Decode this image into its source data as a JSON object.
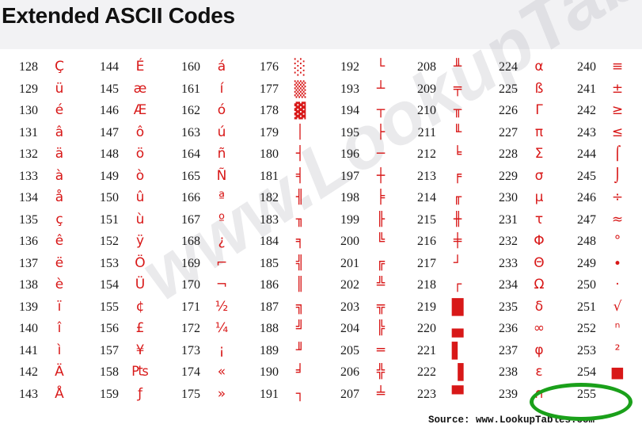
{
  "title": "Extended ASCII Codes",
  "watermark": "www.LookupTables.com",
  "source": "Source:  www.LookupTables.com",
  "highlight_code": "255",
  "colors": {
    "glyph": "#d81818",
    "highlight": "#1aa01a",
    "header_bg": "#f2f2f4"
  },
  "columns": [
    {
      "rows": [
        {
          "code": "128",
          "glyph": "Ç"
        },
        {
          "code": "129",
          "glyph": "ü"
        },
        {
          "code": "130",
          "glyph": "é"
        },
        {
          "code": "131",
          "glyph": "â"
        },
        {
          "code": "132",
          "glyph": "ä"
        },
        {
          "code": "133",
          "glyph": "à"
        },
        {
          "code": "134",
          "glyph": "å"
        },
        {
          "code": "135",
          "glyph": "ç"
        },
        {
          "code": "136",
          "glyph": "ê"
        },
        {
          "code": "137",
          "glyph": "ë"
        },
        {
          "code": "138",
          "glyph": "è"
        },
        {
          "code": "139",
          "glyph": "ï"
        },
        {
          "code": "140",
          "glyph": "î"
        },
        {
          "code": "141",
          "glyph": "ì"
        },
        {
          "code": "142",
          "glyph": "Ä"
        },
        {
          "code": "143",
          "glyph": "Å"
        }
      ]
    },
    {
      "rows": [
        {
          "code": "144",
          "glyph": "É"
        },
        {
          "code": "145",
          "glyph": "æ"
        },
        {
          "code": "146",
          "glyph": "Æ"
        },
        {
          "code": "147",
          "glyph": "ô"
        },
        {
          "code": "148",
          "glyph": "ö"
        },
        {
          "code": "149",
          "glyph": "ò"
        },
        {
          "code": "150",
          "glyph": "û"
        },
        {
          "code": "151",
          "glyph": "ù"
        },
        {
          "code": "152",
          "glyph": "ÿ"
        },
        {
          "code": "153",
          "glyph": "Ö"
        },
        {
          "code": "154",
          "glyph": "Ü"
        },
        {
          "code": "155",
          "glyph": "¢"
        },
        {
          "code": "156",
          "glyph": "£"
        },
        {
          "code": "157",
          "glyph": "¥"
        },
        {
          "code": "158",
          "glyph": "₧"
        },
        {
          "code": "159",
          "glyph": "ƒ"
        }
      ]
    },
    {
      "rows": [
        {
          "code": "160",
          "glyph": "á"
        },
        {
          "code": "161",
          "glyph": "í"
        },
        {
          "code": "162",
          "glyph": "ó"
        },
        {
          "code": "163",
          "glyph": "ú"
        },
        {
          "code": "164",
          "glyph": "ñ"
        },
        {
          "code": "165",
          "glyph": "Ñ"
        },
        {
          "code": "166",
          "glyph": "ª"
        },
        {
          "code": "167",
          "glyph": "º"
        },
        {
          "code": "168",
          "glyph": "¿"
        },
        {
          "code": "169",
          "glyph": "⌐"
        },
        {
          "code": "170",
          "glyph": "¬"
        },
        {
          "code": "171",
          "glyph": "½"
        },
        {
          "code": "172",
          "glyph": "¼"
        },
        {
          "code": "173",
          "glyph": "¡"
        },
        {
          "code": "174",
          "glyph": "«"
        },
        {
          "code": "175",
          "glyph": "»"
        }
      ]
    },
    {
      "rows": [
        {
          "code": "176",
          "glyph": "░"
        },
        {
          "code": "177",
          "glyph": "▒"
        },
        {
          "code": "178",
          "glyph": "▓"
        },
        {
          "code": "179",
          "glyph": "│"
        },
        {
          "code": "180",
          "glyph": "┤"
        },
        {
          "code": "181",
          "glyph": "╡"
        },
        {
          "code": "182",
          "glyph": "╢"
        },
        {
          "code": "183",
          "glyph": "╖"
        },
        {
          "code": "184",
          "glyph": "╕"
        },
        {
          "code": "185",
          "glyph": "╣"
        },
        {
          "code": "186",
          "glyph": "║"
        },
        {
          "code": "187",
          "glyph": "╗"
        },
        {
          "code": "188",
          "glyph": "╝"
        },
        {
          "code": "189",
          "glyph": "╜"
        },
        {
          "code": "190",
          "glyph": "╛"
        },
        {
          "code": "191",
          "glyph": "┐"
        }
      ]
    },
    {
      "rows": [
        {
          "code": "192",
          "glyph": "└"
        },
        {
          "code": "193",
          "glyph": "┴"
        },
        {
          "code": "194",
          "glyph": "┬"
        },
        {
          "code": "195",
          "glyph": "├"
        },
        {
          "code": "196",
          "glyph": "─"
        },
        {
          "code": "197",
          "glyph": "┼"
        },
        {
          "code": "198",
          "glyph": "╞"
        },
        {
          "code": "199",
          "glyph": "╟"
        },
        {
          "code": "200",
          "glyph": "╚"
        },
        {
          "code": "201",
          "glyph": "╔"
        },
        {
          "code": "202",
          "glyph": "╩"
        },
        {
          "code": "203",
          "glyph": "╦"
        },
        {
          "code": "204",
          "glyph": "╠"
        },
        {
          "code": "205",
          "glyph": "═"
        },
        {
          "code": "206",
          "glyph": "╬"
        },
        {
          "code": "207",
          "glyph": "╧"
        }
      ]
    },
    {
      "rows": [
        {
          "code": "208",
          "glyph": "╨"
        },
        {
          "code": "209",
          "glyph": "╤"
        },
        {
          "code": "210",
          "glyph": "╥"
        },
        {
          "code": "211",
          "glyph": "╙"
        },
        {
          "code": "212",
          "glyph": "╘"
        },
        {
          "code": "213",
          "glyph": "╒"
        },
        {
          "code": "214",
          "glyph": "╓"
        },
        {
          "code": "215",
          "glyph": "╫"
        },
        {
          "code": "216",
          "glyph": "╪"
        },
        {
          "code": "217",
          "glyph": "┘"
        },
        {
          "code": "218",
          "glyph": "┌"
        },
        {
          "code": "219",
          "glyph": "█"
        },
        {
          "code": "220",
          "glyph": "▄"
        },
        {
          "code": "221",
          "glyph": "▌"
        },
        {
          "code": "222",
          "glyph": "▐"
        },
        {
          "code": "223",
          "glyph": "▀"
        }
      ]
    },
    {
      "rows": [
        {
          "code": "224",
          "glyph": "α"
        },
        {
          "code": "225",
          "glyph": "ß"
        },
        {
          "code": "226",
          "glyph": "Γ"
        },
        {
          "code": "227",
          "glyph": "π"
        },
        {
          "code": "228",
          "glyph": "Σ"
        },
        {
          "code": "229",
          "glyph": "σ"
        },
        {
          "code": "230",
          "glyph": "µ"
        },
        {
          "code": "231",
          "glyph": "τ"
        },
        {
          "code": "232",
          "glyph": "Φ"
        },
        {
          "code": "233",
          "glyph": "Θ"
        },
        {
          "code": "234",
          "glyph": "Ω"
        },
        {
          "code": "235",
          "glyph": "δ"
        },
        {
          "code": "236",
          "glyph": "∞"
        },
        {
          "code": "237",
          "glyph": "φ"
        },
        {
          "code": "238",
          "glyph": "ε"
        },
        {
          "code": "239",
          "glyph": "∩"
        }
      ]
    },
    {
      "rows": [
        {
          "code": "240",
          "glyph": "≡"
        },
        {
          "code": "241",
          "glyph": "±"
        },
        {
          "code": "242",
          "glyph": "≥"
        },
        {
          "code": "243",
          "glyph": "≤"
        },
        {
          "code": "244",
          "glyph": "⌠"
        },
        {
          "code": "245",
          "glyph": "⌡"
        },
        {
          "code": "246",
          "glyph": "÷"
        },
        {
          "code": "247",
          "glyph": "≈"
        },
        {
          "code": "248",
          "glyph": "°"
        },
        {
          "code": "249",
          "glyph": "∙"
        },
        {
          "code": "250",
          "glyph": "·"
        },
        {
          "code": "251",
          "glyph": "√"
        },
        {
          "code": "252",
          "glyph": "ⁿ"
        },
        {
          "code": "253",
          "glyph": "²"
        },
        {
          "code": "254",
          "glyph": "■"
        },
        {
          "code": "255",
          "glyph": ""
        }
      ]
    }
  ]
}
